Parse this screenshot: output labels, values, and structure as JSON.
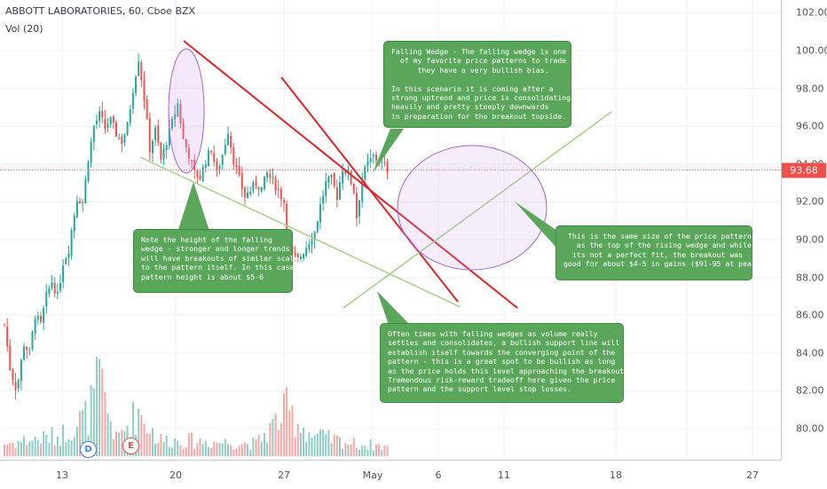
{
  "header": {
    "symbol_line": "ABBOTT LABORATORIES, 60, Cboe BZX",
    "volume_line": "Vol (20)"
  },
  "last_price": "93.68",
  "price_ticks": [
    "102.00",
    "100.00",
    "98.00",
    "96.00",
    "94.00",
    "92.00",
    "90.00",
    "88.00",
    "86.00",
    "84.00",
    "82.00",
    "80.00"
  ],
  "time_ticks": [
    "13",
    "20",
    "27",
    "May",
    "6",
    "11",
    "18",
    "27"
  ],
  "markers": [
    {
      "label": "D",
      "color": "#4a7fd4"
    },
    {
      "label": "E",
      "color": "#e0524e"
    }
  ],
  "notes": {
    "falling_wedge": "Falling Wedge - The falling wedge is one\n  of my favorite price patterns to trade as\n      they have a very bullish bias.\n\nIn this scenario it is coming after a\nstrong uptrend and price is consolidating\nheavily and pretty steeply downwards\nin preparation for the breakout topside.",
    "height": "Note the height of the falling\nwedge - stronger and longer trends\nwill have breakouts of similar scale\nto the pattern itself. In this case the\npattern height is about $5-6",
    "size": " This is the same size of the price pattern\n   as the top of the rising wedge and while\n  its not a perfect fit, the breakout was\ngood for about $4-5 in gains ($91-95 at peak)",
    "support": "Often times with falling wedges as volume really\nsettles and consolidates, a bullish support line will\nestablish itself towards the converging point of the\npattern - this is a great spot to be bullish as long\nas the price holds this level approaching the breakout.\nTremendous risk-reward tradeoff here given the price\npattern and the support level stop losses."
  },
  "colors": {
    "up": "#26a69a",
    "down": "#ef5350",
    "vol_up": "#8fcdc6",
    "vol_down": "#f5a9a7",
    "red_line": "#e0242a",
    "green_line": "#a7cf8a",
    "ellipse": "#a463d6",
    "note_bg": "#5aa65a",
    "last_price_line": "#f04f4b"
  },
  "chart_data": {
    "type": "candlestick",
    "title": "ABBOTT LABORATORIES, 60, Cboe BZX",
    "ylim": [
      79.3,
      102.3
    ],
    "y_ticks": [
      80,
      82,
      84,
      86,
      88,
      90,
      92,
      94,
      96,
      98,
      100,
      102
    ],
    "last_price": 93.68,
    "anchors": [
      [
        0,
        85.5
      ],
      [
        2,
        83.2
      ],
      [
        4,
        82.2
      ],
      [
        5,
        82.6
      ],
      [
        7,
        84.5
      ],
      [
        9,
        84.0
      ],
      [
        11,
        86.0
      ],
      [
        13,
        85.5
      ],
      [
        15,
        87.0
      ],
      [
        17,
        87.8
      ],
      [
        19,
        87.0
      ],
      [
        21,
        88.8
      ],
      [
        23,
        89.5
      ],
      [
        24,
        90.5
      ],
      [
        26,
        92.2
      ],
      [
        28,
        92.0
      ],
      [
        30,
        94.3
      ],
      [
        32,
        96.0
      ],
      [
        34,
        96.6
      ],
      [
        36,
        95.9
      ],
      [
        38,
        96.3
      ],
      [
        40,
        95.6
      ],
      [
        42,
        95.2
      ],
      [
        44,
        96.0
      ],
      [
        46,
        98.0
      ],
      [
        48,
        99.6
      ],
      [
        50,
        97.5
      ],
      [
        52,
        94.8
      ],
      [
        54,
        95.8
      ],
      [
        56,
        94.2
      ],
      [
        58,
        95.2
      ],
      [
        60,
        96.2
      ],
      [
        62,
        97.2
      ],
      [
        64,
        95.3
      ],
      [
        66,
        94.5
      ],
      [
        68,
        93.5
      ],
      [
        70,
        93.3
      ],
      [
        72,
        94.2
      ],
      [
        74,
        94.8
      ],
      [
        76,
        93.5
      ],
      [
        78,
        94.5
      ],
      [
        80,
        95.8
      ],
      [
        82,
        94.2
      ],
      [
        84,
        93.2
      ],
      [
        86,
        92.3
      ],
      [
        88,
        92.6
      ],
      [
        90,
        93.0
      ],
      [
        92,
        92.7
      ],
      [
        94,
        93.5
      ],
      [
        96,
        93.1
      ],
      [
        98,
        92.6
      ],
      [
        100,
        92.0
      ],
      [
        101,
        90.0
      ],
      [
        103,
        89.1
      ],
      [
        105,
        88.9
      ],
      [
        107,
        89.4
      ],
      [
        109,
        89.9
      ],
      [
        111,
        90.4
      ],
      [
        113,
        91.8
      ],
      [
        115,
        93.0
      ],
      [
        117,
        93.2
      ],
      [
        119,
        92.3
      ],
      [
        121,
        93.8
      ],
      [
        123,
        93.5
      ],
      [
        125,
        92.6
      ],
      [
        126,
        91.2
      ],
      [
        128,
        93.3
      ],
      [
        130,
        94.0
      ],
      [
        132,
        94.4
      ],
      [
        134,
        94.1
      ],
      [
        136,
        93.9
      ],
      [
        137,
        93.7
      ]
    ],
    "volume_anchors": [
      [
        0,
        0.15
      ],
      [
        20,
        0.25
      ],
      [
        30,
        0.5
      ],
      [
        34,
        0.9
      ],
      [
        40,
        0.2
      ],
      [
        48,
        0.55
      ],
      [
        55,
        0.2
      ],
      [
        70,
        0.18
      ],
      [
        90,
        0.15
      ],
      [
        101,
        0.55
      ],
      [
        110,
        0.25
      ],
      [
        125,
        0.15
      ],
      [
        137,
        0.12
      ]
    ],
    "trendlines": [
      {
        "kind": "falling-wedge-top",
        "color": "red",
        "points": [
          [
            "Apr 20",
            100.3
          ],
          [
            "May 8",
            87.0
          ]
        ]
      },
      {
        "kind": "falling-wedge-upper",
        "color": "red",
        "points": [
          [
            "Apr 25",
            98.7
          ],
          [
            "May 7",
            87.4
          ]
        ]
      },
      {
        "kind": "falling-wedge-bottom",
        "color": "green",
        "points": [
          [
            "Apr 18",
            94.5
          ],
          [
            "May 7",
            87.0
          ]
        ]
      },
      {
        "kind": "support",
        "color": "green",
        "points": [
          [
            "May 1",
            87.0
          ],
          [
            "May 11",
            96.7
          ]
        ]
      }
    ]
  }
}
